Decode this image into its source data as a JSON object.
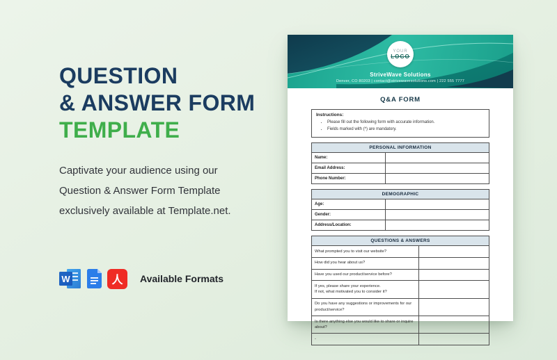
{
  "left": {
    "heading": "QUESTION\n& ANSWER FORM",
    "heading_highlight": "TEMPLATE",
    "description": "Captivate your audience using our\nQuestion & Answer Form Template\nexclusively available at Template.net.",
    "formats_label": "Available Formats",
    "format_icons": [
      "word-icon",
      "google-docs-icon",
      "pdf-icon"
    ]
  },
  "document": {
    "logo": {
      "top": "YOUR",
      "bottom": "LOGO"
    },
    "company_name": "StriveWave Solutions",
    "contact_line": "Denver, CO 80203  |  contact@strivewavesolutions.com  |  222 555 7777",
    "form_title": "Q&A FORM",
    "instructions": {
      "label": "Instructions:",
      "items": [
        "Please fill out the following form with accurate information.",
        "Fields marked with (*) are mandatory."
      ]
    },
    "sections": [
      {
        "header": "PERSONAL INFORMATION",
        "rows": [
          "Name:",
          "Email Address:",
          "Phone Number:"
        ]
      },
      {
        "header": "DEMOGRAPHIC",
        "rows": [
          "Age:",
          "Gender:",
          "Address/Location:"
        ]
      }
    ],
    "qa_section": {
      "header": "QUESTIONS & ANSWERS",
      "questions": [
        "What prompted you to visit our website?",
        "How did you hear about us?",
        "Have you used our product/service before?",
        "If yes, please share your experience.\nIf not, what motivated you to consider it?",
        "Do you have any suggestions or improvements for our product/service?",
        "Is there anything else you would like to share or inquire about?",
        "-"
      ]
    }
  },
  "colors": {
    "headline_navy": "#1b3c60",
    "headline_green": "#3fae4b",
    "background_mint": "#e4efe1",
    "banner_teal": "#2ebca4",
    "banner_dark_wave": "#123f50",
    "section_header_bg": "#d9e4eb",
    "word_blue": "#185abd",
    "docs_blue": "#2b7de9",
    "pdf_red": "#ef2c25"
  }
}
